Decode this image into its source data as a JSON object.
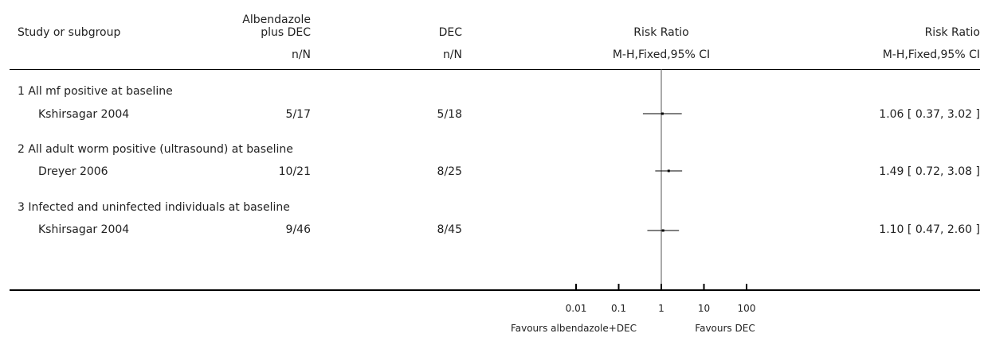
{
  "header": {
    "study_label": "Study or subgroup",
    "col1_line1": "Albendazole",
    "col1_line2": "plus DEC",
    "col1_sub": "n/N",
    "col2": "DEC",
    "col2_sub": "n/N",
    "plot_title": "Risk Ratio",
    "plot_sub": "M-H,Fixed,95% CI",
    "est_title": "Risk Ratio",
    "est_sub": "M-H,Fixed,95% CI"
  },
  "chart_data": {
    "type": "forest",
    "xscale": "log",
    "xlim": [
      0.01,
      100
    ],
    "null_line": 1,
    "tick_labels": [
      "0.01",
      "0.1",
      "1",
      "10",
      "100"
    ],
    "favours_left": "Favours albendazole+DEC",
    "favours_right": "Favours DEC",
    "subgroups": [
      {
        "label": "1 All mf positive at baseline",
        "studies": [
          {
            "study": "Kshirsagar 2004",
            "treat": "5/17",
            "control": "5/18",
            "rr": 1.06,
            "lo": 0.37,
            "hi": 3.02,
            "ci_text": "1.06 [ 0.37, 3.02 ]"
          }
        ]
      },
      {
        "label": "2 All adult worm positive (ultrasound) at baseline",
        "studies": [
          {
            "study": "Dreyer 2006",
            "treat": "10/21",
            "control": "8/25",
            "rr": 1.49,
            "lo": 0.72,
            "hi": 3.08,
            "ci_text": "1.49 [ 0.72, 3.08 ]"
          }
        ]
      },
      {
        "label": "3 Infected and uninfected individuals at baseline",
        "studies": [
          {
            "study": "Kshirsagar 2004",
            "treat": "9/46",
            "control": "8/45",
            "rr": 1.1,
            "lo": 0.47,
            "hi": 2.6,
            "ci_text": "1.10 [ 0.47, 2.60 ]"
          }
        ]
      }
    ]
  }
}
